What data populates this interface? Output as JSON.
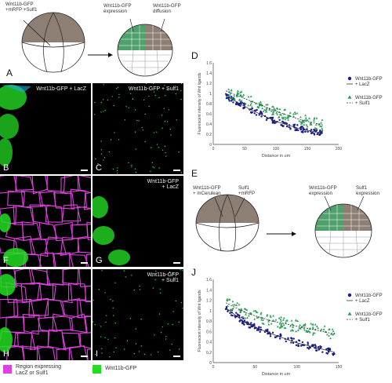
{
  "panel_letters": {
    "A": "A",
    "B": "B",
    "C": "C",
    "D": "D",
    "E": "E",
    "F": "F",
    "G": "G",
    "H": "H",
    "I": "I",
    "J": "J"
  },
  "schematic_A": {
    "injection_label": "Wnt11b-GFP\n+mRFP +Sulf1",
    "expression_label": "Wnt11b-GFP\nexpression",
    "diffusion_label": "Wnt11b-GFP\ndiffusion"
  },
  "schematic_E": {
    "injection_left": "Wnt11b-GFP\n+ mCerulean",
    "injection_right": "Sulf1\n+mRFP",
    "expression_left": "Wnt11b-GFP\nexpression",
    "expression_right": "Sulf1\nexpression"
  },
  "micrographs": {
    "B": "Wnt11b-GFP + LacZ",
    "C": "Wnt11b-GFP + Sulf1",
    "G": "Wnt11b-GFP\n+ LacZ",
    "I": "Wnt11b-GFP\n+ Sulf1"
  },
  "legend": {
    "magenta_label": "Region expressing\nLacZ or Sulf1",
    "green_label": "Wnt11b-GFP",
    "magenta_color": "#e040e0",
    "green_color": "#22dd22"
  },
  "chart_data": [
    {
      "id": "D",
      "type": "scatter",
      "xlabel": "Distance in um",
      "ylabel": "Fluorescent intensity of Wnt ligands",
      "xlim": [
        0,
        200
      ],
      "ylim": [
        0,
        1.6
      ],
      "xticks": [
        "0",
        "50",
        "100",
        "150",
        "200"
      ],
      "yticks": [
        "0",
        "0.2",
        "0.4",
        "0.6",
        "0.8",
        "1",
        "1.2",
        "1.4",
        "1.6"
      ],
      "series": [
        {
          "name": "Wnt11b-GFP\n+ LacZ",
          "color": "#1a1a8c",
          "marker": "circle",
          "trend": [
            [
              20,
              0.95
            ],
            [
              60,
              0.68
            ],
            [
              100,
              0.45
            ],
            [
              140,
              0.3
            ],
            [
              175,
              0.22
            ]
          ]
        },
        {
          "name": "Wnt11b-GFP\n+ Sulf1",
          "color": "#2e9e5a",
          "marker": "triangle",
          "trend": [
            [
              20,
              1.05
            ],
            [
              60,
              0.85
            ],
            [
              100,
              0.65
            ],
            [
              140,
              0.48
            ],
            [
              175,
              0.38
            ]
          ]
        }
      ]
    },
    {
      "id": "J",
      "type": "scatter",
      "xlabel": "Distance in um",
      "ylabel": "Fluorescent intensity of Wnt ligands",
      "xlim": [
        0,
        150
      ],
      "ylim": [
        0,
        1.6
      ],
      "xticks": [
        "0",
        "50",
        "100",
        "150"
      ],
      "yticks": [
        "0",
        "0.2",
        "0.4",
        "0.6",
        "0.8",
        "1",
        "1.2",
        "1.4",
        "1.6"
      ],
      "series": [
        {
          "name": "Wnt11b-GFP\n+ LacZ",
          "color": "#1a1a8c",
          "marker": "circle",
          "trend": [
            [
              15,
              1.05
            ],
            [
              40,
              0.75
            ],
            [
              70,
              0.55
            ],
            [
              100,
              0.38
            ],
            [
              145,
              0.2
            ]
          ]
        },
        {
          "name": "Wnt11b-GFP\n+ Sulf1",
          "color": "#2e9e5a",
          "marker": "triangle",
          "trend": [
            [
              15,
              1.15
            ],
            [
              40,
              0.95
            ],
            [
              70,
              0.8
            ],
            [
              100,
              0.7
            ],
            [
              145,
              0.55
            ]
          ]
        }
      ]
    }
  ]
}
